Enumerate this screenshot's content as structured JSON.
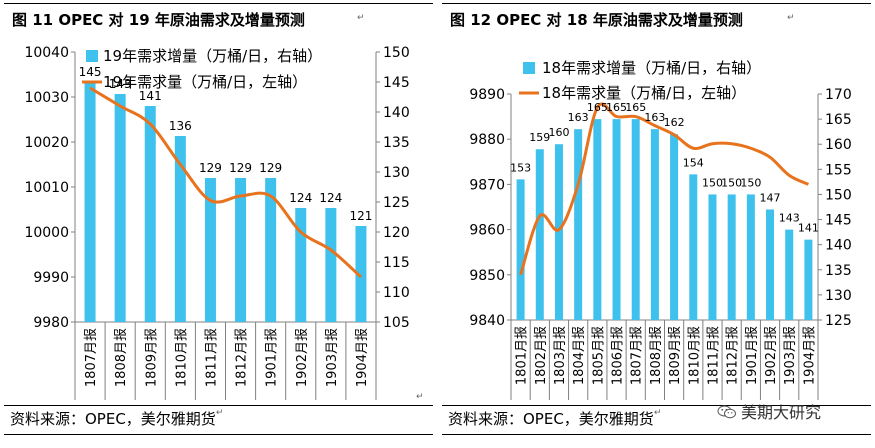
{
  "source_text": "资料来源：OPEC，美尔雅期货",
  "para_mark": "↵",
  "watermark": {
    "text": "美期大研究",
    "icon": "wechat-icon"
  },
  "colors": {
    "bar": "#3ec1ec",
    "line": "#e8731e",
    "axis": "#808080",
    "grid": "#000000"
  },
  "chart_data": [
    {
      "type": "bar",
      "title": "图 11    OPEC 对 19 年原油需求及增量预测",
      "categories": [
        "1807月报",
        "1808月报",
        "1809月报",
        "1810月报",
        "1811月报",
        "1812月报",
        "1901月报",
        "1902月报",
        "1903月报",
        "1904月报"
      ],
      "series": [
        {
          "name": "19年需求增量（万桶/日，右轴）",
          "type": "bar",
          "axis": "right",
          "values": [
            145,
            143,
            141,
            136,
            129,
            129,
            129,
            124,
            124,
            121
          ]
        },
        {
          "name": "19年需求量（万桶/日，左轴）",
          "type": "line",
          "axis": "left",
          "values": [
            10032,
            10028,
            10024,
            10015,
            10007,
            10008,
            10008,
            10000,
            9996,
            9990
          ]
        }
      ],
      "bar_labels": [
        "145",
        "143",
        "141",
        "136",
        "129",
        "129",
        "129",
        "124",
        "124",
        "121"
      ],
      "left_axis": {
        "min": 9980,
        "max": 10040,
        "ticks": [
          "9980",
          "9990",
          "10000",
          "10010",
          "10020",
          "10030",
          "10040"
        ]
      },
      "right_axis": {
        "min": 105,
        "max": 150,
        "ticks": [
          "105",
          "110",
          "115",
          "120",
          "125",
          "130",
          "135",
          "140",
          "145",
          "150"
        ]
      },
      "legend_position": "top"
    },
    {
      "type": "bar",
      "title": "图 12    OPEC 对 18 年原油需求及增量预测",
      "categories": [
        "1801月报",
        "1802月报",
        "1803月报",
        "1804月报",
        "1805月报",
        "1806月报",
        "1807月报",
        "1808月报",
        "1809月报",
        "1810月报",
        "1811月报",
        "1812月报",
        "1901月报",
        "1902月报",
        "1903月报",
        "1904月报"
      ],
      "series": [
        {
          "name": "18年需求增量（万桶/日，右轴）",
          "type": "bar",
          "axis": "right",
          "values": [
            153,
            159,
            160,
            163,
            165,
            165,
            165,
            163,
            162,
            154,
            150,
            150,
            150,
            147,
            143,
            141
          ]
        },
        {
          "name": "18年需求量（万桶/日，左轴）",
          "type": "line",
          "axis": "left",
          "values": [
            9850,
            9863,
            9860,
            9870,
            9887,
            9885,
            9885,
            9883,
            9881,
            9878,
            9879,
            9879,
            9878,
            9876,
            9872,
            9870
          ]
        }
      ],
      "bar_labels": [
        "153",
        "159",
        "160",
        "163",
        "165",
        "165",
        "165",
        "163",
        "162",
        "154",
        "150",
        "150",
        "150",
        "147",
        "143",
        "141"
      ],
      "left_axis": {
        "min": 9840,
        "max": 9890,
        "ticks": [
          "9840",
          "9850",
          "9860",
          "9870",
          "9880",
          "9890"
        ]
      },
      "right_axis": {
        "min": 125,
        "max": 170,
        "ticks": [
          "125",
          "130",
          "135",
          "140",
          "145",
          "150",
          "155",
          "160",
          "165",
          "170"
        ]
      },
      "legend_position": "top"
    }
  ]
}
